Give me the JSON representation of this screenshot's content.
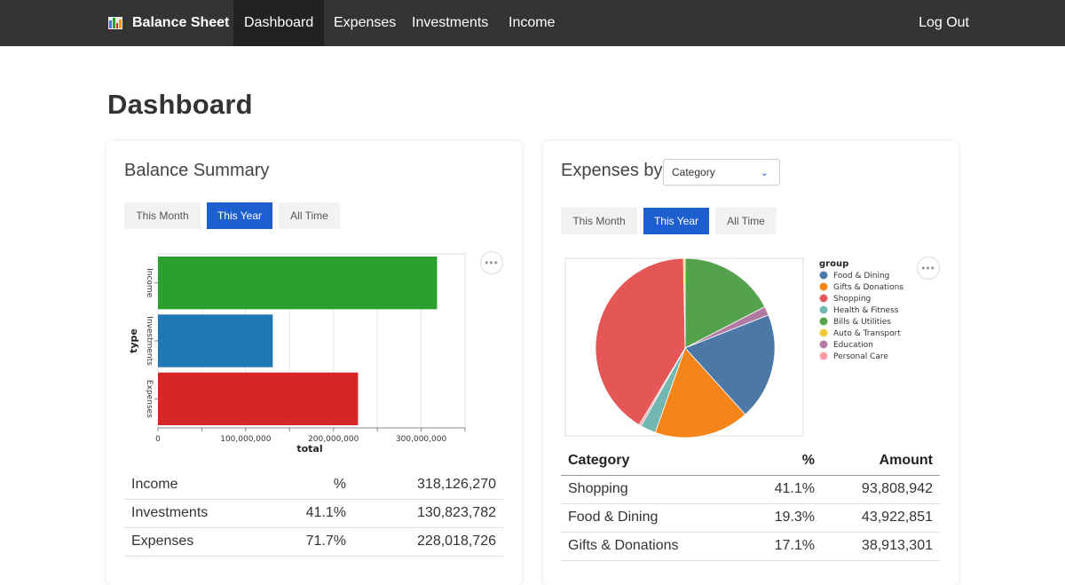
{
  "nav": {
    "brand": "Balance Sheet",
    "items": [
      {
        "label": "Dashboard",
        "active": true
      },
      {
        "label": "Expenses",
        "active": false
      },
      {
        "label": "Investments",
        "active": false
      },
      {
        "label": "Income",
        "active": false
      }
    ],
    "logout": "Log Out"
  },
  "page_title": "Dashboard",
  "balance_summary": {
    "title": "Balance Summary",
    "ranges": [
      {
        "label": "This Month",
        "active": false
      },
      {
        "label": "This Year",
        "active": true
      },
      {
        "label": "All Time",
        "active": false
      }
    ],
    "more_label": "•••",
    "table": [
      {
        "type": "Income",
        "pct": "%",
        "amount": "318,126,270"
      },
      {
        "type": "Investments",
        "pct": "41.1%",
        "amount": "130,823,782"
      },
      {
        "type": "Expenses",
        "pct": "71.7%",
        "amount": "228,018,726"
      }
    ]
  },
  "expenses_by": {
    "title": "Expenses by",
    "select_value": "Category",
    "ranges": [
      {
        "label": "This Month",
        "active": false
      },
      {
        "label": "This Year",
        "active": true
      },
      {
        "label": "All Time",
        "active": false
      }
    ],
    "more_label": "•••",
    "table_headers": {
      "category": "Category",
      "pct": "%",
      "amount": "Amount"
    },
    "table": [
      {
        "category": "Shopping",
        "pct": "41.1%",
        "amount": "93,808,942"
      },
      {
        "category": "Food & Dining",
        "pct": "19.3%",
        "amount": "43,922,851"
      },
      {
        "category": "Gifts & Donations",
        "pct": "17.1%",
        "amount": "38,913,301"
      }
    ]
  },
  "chart_data": [
    {
      "type": "bar",
      "orientation": "horizontal",
      "categories": [
        "Income",
        "Investments",
        "Expenses"
      ],
      "values": [
        318126270,
        130823782,
        228018726
      ],
      "colors": [
        "#2ca02c",
        "#1f77b4",
        "#d62728"
      ],
      "xlabel": "total",
      "ylabel": "type",
      "xlim": [
        0,
        350000000
      ],
      "xticks": [
        {
          "value": 0,
          "label": "0"
        },
        {
          "value": 100000000,
          "label": "100,000,000"
        },
        {
          "value": 200000000,
          "label": "200,000,000"
        },
        {
          "value": 300000000,
          "label": "300,000,000"
        }
      ],
      "grid": true
    },
    {
      "type": "pie",
      "legend_title": "group",
      "legend_position": "right",
      "slices": [
        {
          "name": "Food & Dining",
          "value": 19.3,
          "color": "#4c78a8"
        },
        {
          "name": "Gifts & Donations",
          "value": 17.1,
          "color": "#f58518"
        },
        {
          "name": "Shopping",
          "value": 41.1,
          "color": "#e45756"
        },
        {
          "name": "Health & Fitness",
          "value": 2.8,
          "color": "#72b7b2"
        },
        {
          "name": "Bills & Utilities",
          "value": 17.4,
          "color": "#54a24b"
        },
        {
          "name": "Auto & Transport",
          "value": 0.3,
          "color": "#eeca3b"
        },
        {
          "name": "Education",
          "value": 1.6,
          "color": "#b279a2"
        },
        {
          "name": "Personal Care",
          "value": 0.4,
          "color": "#ff9da6"
        }
      ],
      "draw_order": [
        "Bills & Utilities",
        "Education",
        "Food & Dining",
        "Gifts & Donations",
        "Health & Fitness",
        "Personal Care",
        "Shopping",
        "Auto & Transport"
      ]
    }
  ],
  "colors": {
    "nav_bg": "#343434",
    "nav_active": "#222222",
    "accent": "#1e5fd0"
  }
}
